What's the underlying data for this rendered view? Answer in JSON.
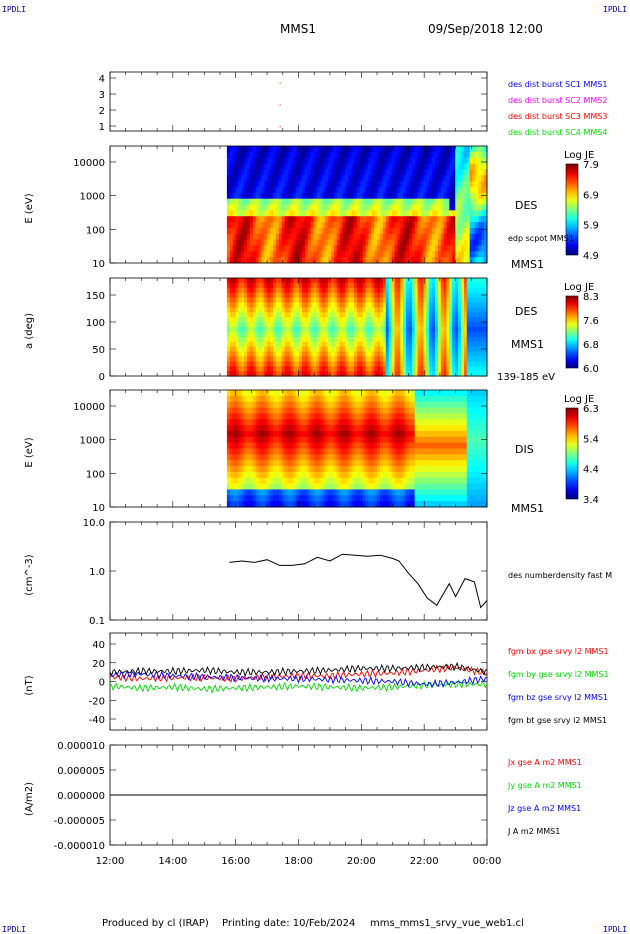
{
  "corners": {
    "tl": "IPDLI",
    "tr": "IPDLI",
    "bl": "IPDLI",
    "br": "IPDLI"
  },
  "header": {
    "title": "MMS1",
    "datetime": "09/Sep/2018 12:00"
  },
  "footer": {
    "produced": "Produced by cl (IRAP)",
    "printing": "Printing date: 10/Feb/2024",
    "script": "mms_mms1_srvy_vue_web1.cl"
  },
  "colors": {
    "blue": "#0000ff",
    "magenta": "#ff00ff",
    "red": "#ff0000",
    "green": "#00dd00",
    "black": "#000000"
  },
  "chart_data": [
    {
      "type": "scatter",
      "id": "burst",
      "y_ticks": [
        "4",
        "3",
        "2",
        "1"
      ],
      "ylim": [
        0.5,
        4.5
      ],
      "legend": [
        {
          "label": "des dist burst SC1 MMS1",
          "color": "#0000ff"
        },
        {
          "label": "des dist burst SC2 MMS2",
          "color": "#ff00ff"
        },
        {
          "label": "des dist burst SC3 MMS3",
          "color": "#ff0000"
        },
        {
          "label": "des dist burst SC4 MMS4",
          "color": "#00dd00"
        }
      ]
    },
    {
      "type": "heatmap",
      "id": "des-energy",
      "ylabel": "E (eV)",
      "scale": "log",
      "y_ticks": [
        "10000",
        "1000",
        "100",
        "10"
      ],
      "side_labels": [
        "DES",
        "edp scpot MMS1",
        "MMS1"
      ],
      "colorbar": {
        "title": "Log JE",
        "ticks": [
          "7.9",
          "6.9",
          "5.9",
          "4.9"
        ]
      }
    },
    {
      "type": "heatmap",
      "id": "des-pitch",
      "ylabel": "a (deg)",
      "y_ticks": [
        "150",
        "100",
        "50",
        "0"
      ],
      "ylim": [
        0,
        180
      ],
      "side_labels": [
        "DES",
        "MMS1",
        "139-185 eV"
      ],
      "colorbar": {
        "title": "Log JE",
        "ticks": [
          "8.3",
          "7.6",
          "6.8",
          "6.0"
        ]
      }
    },
    {
      "type": "heatmap",
      "id": "dis-energy",
      "ylabel": "E (eV)",
      "scale": "log",
      "y_ticks": [
        "10000",
        "1000",
        "100",
        "10"
      ],
      "side_labels": [
        "DIS",
        "MMS1"
      ],
      "colorbar": {
        "title": "Log JE",
        "ticks": [
          "6.3",
          "5.4",
          "4.4",
          "3.4"
        ]
      }
    },
    {
      "type": "line",
      "id": "density",
      "ylabel": "(cm^-3)",
      "scale": "log",
      "y_ticks": [
        "10.0",
        "1.0",
        "0.1"
      ],
      "ylim": [
        0.1,
        10
      ],
      "legend": [
        {
          "label": "des numberdensity fast M",
          "color": "#000000"
        }
      ],
      "x_hours": [
        3.8,
        4.2,
        4.6,
        5.0,
        5.4,
        5.8,
        6.2,
        6.6,
        7.0,
        7.4,
        7.8,
        8.2,
        8.6,
        9.0,
        9.2,
        9.5,
        9.8,
        10.1,
        10.4,
        10.8,
        11.0,
        11.3,
        11.6,
        11.8,
        12.0
      ],
      "values": [
        1.5,
        1.6,
        1.5,
        1.7,
        1.3,
        1.3,
        1.4,
        1.9,
        1.6,
        2.2,
        2.1,
        2.0,
        2.1,
        1.8,
        1.6,
        0.9,
        0.55,
        0.28,
        0.2,
        0.55,
        0.3,
        0.7,
        0.6,
        0.18,
        0.25
      ]
    },
    {
      "type": "line",
      "id": "fgm",
      "ylabel": "(nT)",
      "y_ticks": [
        "40",
        "20",
        "0",
        "-20",
        "-40"
      ],
      "ylim": [
        -50,
        50
      ],
      "legend": [
        {
          "label": "fgm bx gse srvy l2 MMS1",
          "color": "#ff0000"
        },
        {
          "label": "fgm by gse srvy l2 MMS1",
          "color": "#00dd00"
        },
        {
          "label": "fgm bz gse srvy l2 MMS1",
          "color": "#0000ff"
        },
        {
          "label": "fgm bt gse srvy l2 MMS1",
          "color": "#000000"
        }
      ],
      "x_hours": [
        0,
        1,
        2,
        3,
        4,
        5,
        6,
        7,
        8,
        9,
        10,
        11,
        12
      ],
      "series": [
        {
          "values": [
            5,
            3,
            4,
            4,
            3,
            5,
            6,
            6,
            8,
            9,
            12,
            15,
            9
          ]
        },
        {
          "values": [
            -5,
            -7,
            -6,
            -8,
            -7,
            -6,
            -5,
            -6,
            -7,
            -6,
            -4,
            -3,
            -3
          ]
        },
        {
          "values": [
            7,
            8,
            6,
            5,
            4,
            3,
            3,
            2,
            1,
            0,
            -3,
            -1,
            3
          ]
        },
        {
          "values": [
            10,
            11,
            11,
            12,
            10,
            10,
            11,
            12,
            14,
            14,
            15,
            16,
            10
          ]
        }
      ]
    },
    {
      "type": "line",
      "id": "current",
      "ylabel": "(A/m2)",
      "y_ticks": [
        "0.000010",
        "0.000005",
        "0.000000",
        "-0.000005",
        "-0.000010"
      ],
      "ylim": [
        -1e-05,
        1e-05
      ],
      "legend": [
        {
          "label": "Jx gse A m2 MMS1",
          "color": "#ff0000"
        },
        {
          "label": "Jy gse A m2 MMS1",
          "color": "#00dd00"
        },
        {
          "label": "Jz gse A m2 MMS1",
          "color": "#0000ff"
        },
        {
          "label": "J A m2 MMS1",
          "color": "#000000"
        }
      ],
      "x_hours": [
        0,
        12
      ],
      "series": [
        {
          "values": [
            0,
            0
          ]
        }
      ]
    }
  ],
  "x_axis": {
    "ticks": [
      "12:00",
      "14:00",
      "16:00",
      "18:00",
      "20:00",
      "22:00",
      "00:00"
    ],
    "x_hours": [
      0,
      2,
      4,
      6,
      8,
      10,
      12
    ]
  }
}
